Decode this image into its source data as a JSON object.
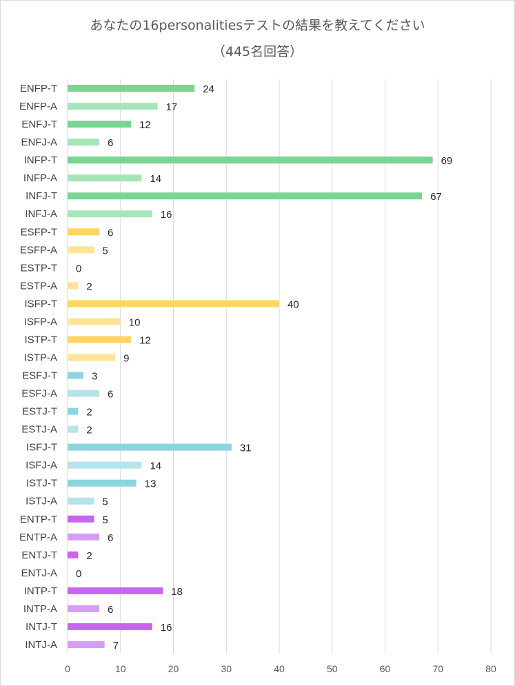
{
  "chart_data": {
    "type": "bar",
    "orientation": "horizontal",
    "title": "あなたの16personalitiesテストの結果を教えてください",
    "subtitle": "（445名回答）",
    "categories": [
      "ENFP-T",
      "ENFP-A",
      "ENFJ-T",
      "ENFJ-A",
      "INFP-T",
      "INFP-A",
      "INFJ-T",
      "INFJ-A",
      "ESFP-T",
      "ESFP-A",
      "ESTP-T",
      "ESTP-A",
      "ISFP-T",
      "ISFP-A",
      "ISTP-T",
      "ISTP-A",
      "ESFJ-T",
      "ESFJ-A",
      "ESTJ-T",
      "ESTJ-A",
      "ISFJ-T",
      "ISFJ-A",
      "ISTJ-T",
      "ISTJ-A",
      "ENTP-T",
      "ENTP-A",
      "ENTJ-T",
      "ENTJ-A",
      "INTP-T",
      "INTP-A",
      "INTJ-T",
      "INTJ-A"
    ],
    "values": [
      24,
      17,
      12,
      6,
      69,
      14,
      67,
      16,
      6,
      5,
      0,
      2,
      40,
      10,
      12,
      9,
      3,
      6,
      2,
      2,
      31,
      14,
      13,
      5,
      5,
      6,
      2,
      0,
      18,
      6,
      16,
      7
    ],
    "colors": {
      "green_T": "#78D690",
      "green_A": "#A6E5B7",
      "yellow_T": "#FFD563",
      "yellow_A": "#FFE39A",
      "cyan_T": "#8CD5DE",
      "cyan_A": "#B5E4EA",
      "purple_T": "#C864F2",
      "purple_A": "#D69DF7"
    },
    "xlim": [
      0,
      80
    ],
    "xticks": [
      0,
      10,
      20,
      30,
      40,
      50,
      60,
      70,
      80
    ],
    "grid": true,
    "data_labels": true,
    "legend": "none"
  }
}
